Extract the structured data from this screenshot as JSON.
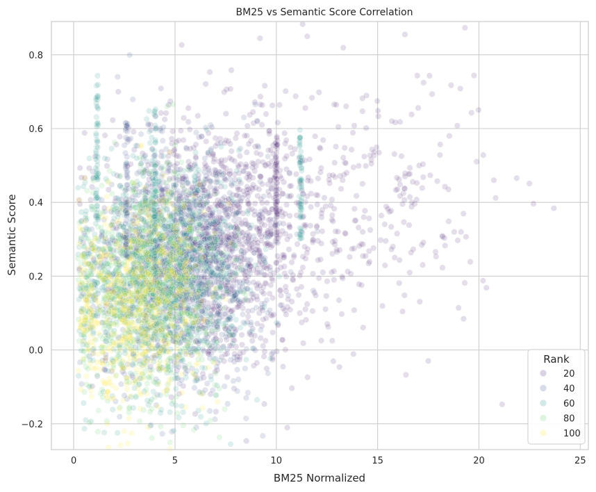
{
  "chart_data": {
    "type": "scatter",
    "title": "BM25 vs Semantic Score Correlation",
    "xlabel": "BM25 Normalized",
    "ylabel": "Semantic Score",
    "xlim": [
      -1.1,
      25.4
    ],
    "ylim": [
      -0.27,
      0.89
    ],
    "xticks": [
      0,
      5,
      10,
      15,
      20,
      25
    ],
    "yticks": [
      -0.2,
      0.0,
      0.2,
      0.4,
      0.6,
      0.8
    ],
    "xtick_labels": [
      "0",
      "5",
      "10",
      "15",
      "20",
      "25"
    ],
    "ytick_labels": [
      "−0.2",
      "0.0",
      "0.2",
      "0.4",
      "0.6",
      "0.8"
    ],
    "grid": true,
    "hue_variable": "Rank",
    "legend": {
      "title": "Rank",
      "placement": "lower right",
      "entries": [
        {
          "label": "20",
          "color": "#482475"
        },
        {
          "label": "40",
          "color": "#3b528b"
        },
        {
          "label": "60",
          "color": "#21918c"
        },
        {
          "label": "80",
          "color": "#5ec962"
        },
        {
          "label": "100",
          "color": "#fde725"
        }
      ]
    },
    "point_alpha": 0.15,
    "clusters": [
      {
        "rank_group": "20",
        "color": "#482475",
        "x_center": 7.0,
        "x_spread": 2.6,
        "y_center": 0.3,
        "y_spread": 0.17,
        "count": 1400
      },
      {
        "rank_group": "20",
        "color": "#482475",
        "x_center": 14.5,
        "x_spread": 3.2,
        "y_center": 0.4,
        "y_spread": 0.19,
        "count": 260
      },
      {
        "rank_group": "40",
        "color": "#3b528b",
        "x_center": 5.2,
        "x_spread": 2.1,
        "y_center": 0.22,
        "y_spread": 0.16,
        "count": 1100
      },
      {
        "rank_group": "60",
        "color": "#21918c",
        "x_center": 4.2,
        "x_spread": 2.0,
        "y_center": 0.2,
        "y_spread": 0.16,
        "count": 1100
      },
      {
        "rank_group": "80",
        "color": "#5ec962",
        "x_center": 3.6,
        "x_spread": 1.8,
        "y_center": 0.17,
        "y_spread": 0.15,
        "count": 900
      },
      {
        "rank_group": "100",
        "color": "#fde725",
        "x_center": 3.0,
        "x_spread": 1.7,
        "y_center": 0.14,
        "y_spread": 0.14,
        "count": 700
      }
    ],
    "vertical_streaks": [
      {
        "x": 1.15,
        "y_min": 0.35,
        "y_max": 0.72,
        "color": "#21918c"
      },
      {
        "x": 2.6,
        "y_min": 0.25,
        "y_max": 0.62,
        "color": "#3b528b"
      },
      {
        "x": 4.0,
        "y_min": 0.2,
        "y_max": 0.66,
        "color": "#21918c"
      },
      {
        "x": 11.2,
        "y_min": 0.3,
        "y_max": 0.6,
        "color": "#21918c"
      },
      {
        "x": 10.0,
        "y_min": 0.3,
        "y_max": 0.58,
        "color": "#482475"
      }
    ]
  }
}
